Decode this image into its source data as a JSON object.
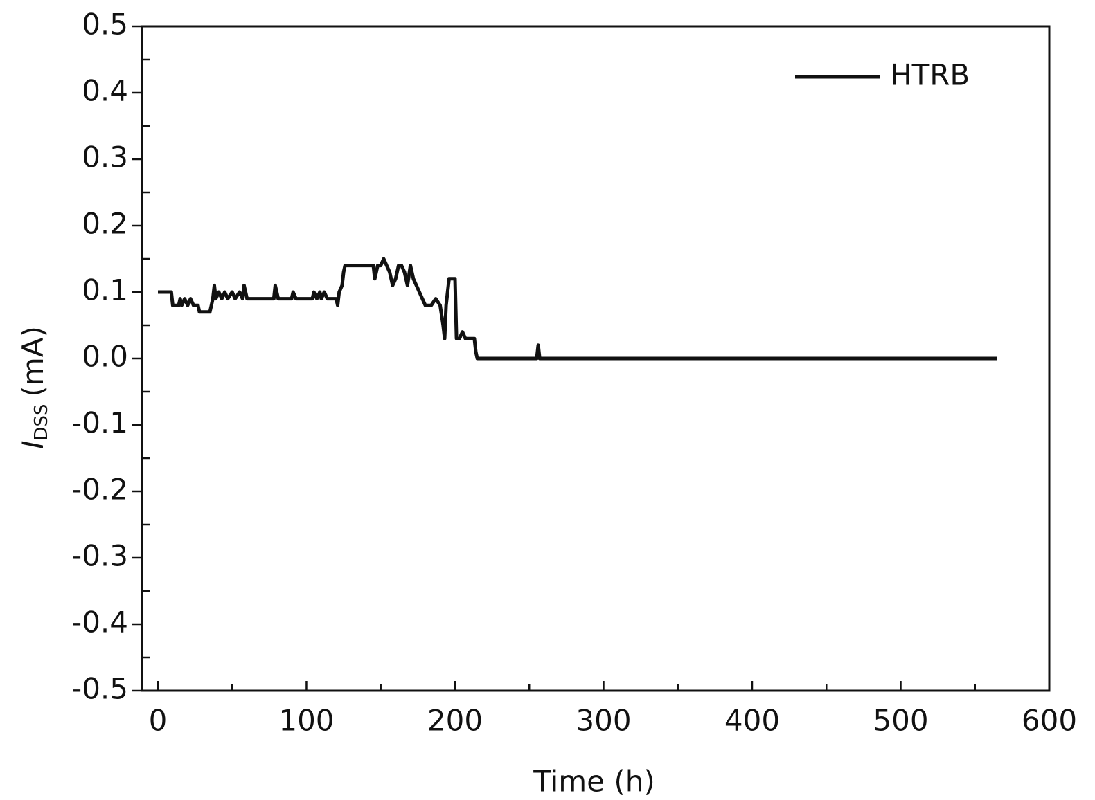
{
  "chart_data": {
    "type": "line",
    "x_label": "Time (h)",
    "y_label": {
      "symbol": "I",
      "subscript": "DSS",
      "unit": "(mA)"
    },
    "x": [
      0,
      7,
      9,
      10,
      14,
      15,
      16,
      18,
      20,
      22,
      24,
      27,
      28,
      35,
      36,
      37,
      38,
      39,
      41,
      43,
      45,
      47,
      50,
      52,
      55,
      57,
      58,
      60,
      78,
      79,
      81,
      90,
      91,
      93,
      104,
      105,
      107,
      109,
      110,
      112,
      114,
      120,
      121,
      122,
      124,
      125,
      126,
      145,
      146,
      148,
      150,
      152,
      154,
      156,
      158,
      160,
      162,
      164,
      166,
      168,
      170,
      172,
      174,
      176,
      180,
      184,
      187,
      190,
      192,
      193,
      194,
      196,
      200,
      201,
      203,
      205,
      207,
      213,
      214,
      215,
      255,
      256,
      257,
      565
    ],
    "series": [
      {
        "name": "HTRB",
        "color": "#111111",
        "values": [
          0.1,
          0.1,
          0.1,
          0.08,
          0.08,
          0.09,
          0.08,
          0.09,
          0.08,
          0.09,
          0.08,
          0.08,
          0.07,
          0.07,
          0.08,
          0.09,
          0.11,
          0.09,
          0.1,
          0.09,
          0.1,
          0.09,
          0.1,
          0.09,
          0.1,
          0.09,
          0.11,
          0.09,
          0.09,
          0.11,
          0.09,
          0.09,
          0.1,
          0.09,
          0.09,
          0.1,
          0.09,
          0.1,
          0.09,
          0.1,
          0.09,
          0.09,
          0.08,
          0.1,
          0.11,
          0.13,
          0.14,
          0.14,
          0.12,
          0.14,
          0.14,
          0.15,
          0.14,
          0.13,
          0.11,
          0.12,
          0.14,
          0.14,
          0.13,
          0.11,
          0.14,
          0.12,
          0.11,
          0.1,
          0.08,
          0.08,
          0.09,
          0.08,
          0.05,
          0.03,
          0.08,
          0.12,
          0.12,
          0.03,
          0.03,
          0.04,
          0.03,
          0.03,
          0.01,
          0.0,
          0.0,
          0.02,
          0.0,
          0.0
        ]
      }
    ],
    "xlim": [
      -10.7,
      600
    ],
    "ylim": [
      -0.5,
      0.5
    ],
    "xticks": [
      0,
      100,
      200,
      300,
      400,
      500,
      600
    ],
    "yticks": [
      -0.5,
      -0.4,
      -0.3,
      -0.2,
      -0.1,
      {
        "value": 0,
        "label": "0.0"
      },
      0.1,
      0.2,
      0.3,
      0.4,
      0.5
    ],
    "xminorticks": [
      50,
      150,
      250,
      350,
      450,
      550
    ],
    "yminorticks": [
      -0.45,
      -0.35,
      -0.25,
      -0.15,
      -0.05,
      0.05,
      0.15,
      0.25,
      0.35,
      0.45
    ],
    "grid": false,
    "legend": "upper right"
  }
}
